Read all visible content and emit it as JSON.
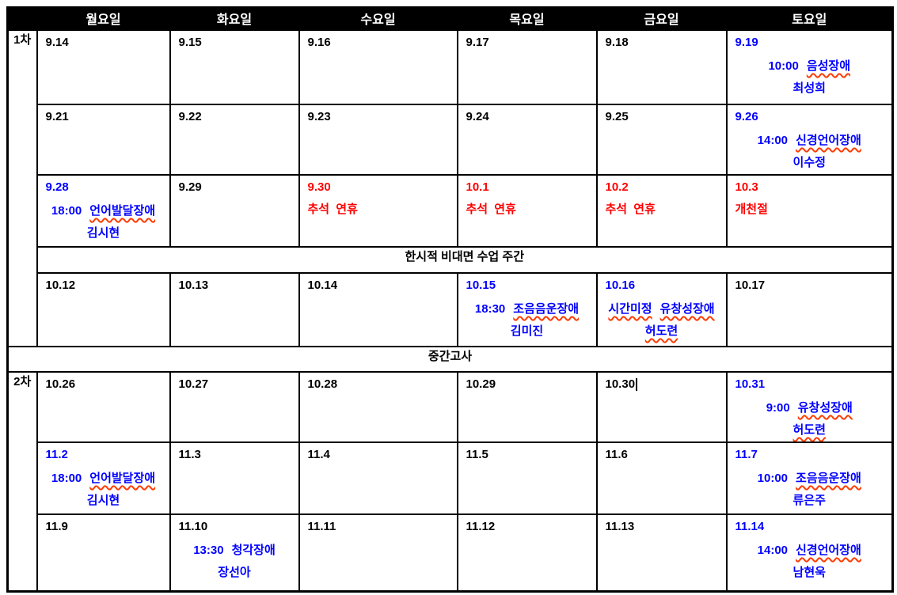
{
  "colors": {
    "event_text": "#0000ff",
    "holiday_text": "#ff0000",
    "normal_text": "#000000",
    "header_bg": "#000000",
    "header_text": "#ffffff",
    "spellcheck_underline": "#ff3b00"
  },
  "header": {
    "days": [
      "월요일",
      "화요일",
      "수요일",
      "목요일",
      "금요일",
      "토요일"
    ]
  },
  "rows": [
    {
      "type": "week",
      "label": {
        "text": "1차",
        "rowspan": 5
      },
      "days": [
        {
          "date": "9.14"
        },
        {
          "date": "9.15"
        },
        {
          "date": "9.16"
        },
        {
          "date": "9.17"
        },
        {
          "date": "9.18"
        },
        {
          "date": "9.19",
          "date_color": "#0000ff",
          "event": {
            "time": "10:00",
            "subject": "음성장애",
            "subject_wavy": true,
            "instructor": "최성희"
          }
        }
      ]
    },
    {
      "type": "week",
      "days": [
        {
          "date": "9.21"
        },
        {
          "date": "9.22"
        },
        {
          "date": "9.23"
        },
        {
          "date": "9.24"
        },
        {
          "date": "9.25"
        },
        {
          "date": "9.26",
          "date_color": "#0000ff",
          "event": {
            "time": "14:00",
            "subject": "신경언어장애",
            "subject_wavy": true,
            "instructor": "이수정"
          }
        }
      ]
    },
    {
      "type": "week",
      "days": [
        {
          "date": "9.28",
          "date_color": "#0000ff",
          "event": {
            "time": "18:00",
            "subject": "언어발달장애",
            "subject_wavy": true,
            "instructor": "김시현"
          }
        },
        {
          "date": "9.29"
        },
        {
          "date": "9.30",
          "date_color": "#ff0000",
          "holiday": "추석 연휴"
        },
        {
          "date": "10.1",
          "date_color": "#ff0000",
          "holiday": "추석 연휴"
        },
        {
          "date": "10.2",
          "date_color": "#ff0000",
          "holiday": "추석 연휴"
        },
        {
          "date": "10.3",
          "date_color": "#ff0000",
          "holiday": "개천절"
        }
      ]
    },
    {
      "type": "banner",
      "id": "remote-class-week",
      "colspan": 6,
      "text": "한시적 비대면 수업 주간"
    },
    {
      "type": "week",
      "days": [
        {
          "date": "10.12"
        },
        {
          "date": "10.13"
        },
        {
          "date": "10.14"
        },
        {
          "date": "10.15",
          "date_color": "#0000ff",
          "event": {
            "time": "18:30",
            "subject": "조음음운장애",
            "subject_wavy": true,
            "instructor": "김미진"
          }
        },
        {
          "date": "10.16",
          "date_color": "#0000ff",
          "event": {
            "time": "시간미정",
            "time_wavy": true,
            "subject": "유창성장애",
            "subject_wavy": true,
            "instructor": "허도련",
            "instructor_wavy": true
          }
        },
        {
          "date": "10.17"
        }
      ]
    },
    {
      "type": "banner",
      "id": "midterm-exam",
      "colspan": 7,
      "text": "중간고사"
    },
    {
      "type": "week",
      "label": {
        "text": "2차",
        "rowspan": 3
      },
      "days": [
        {
          "date": "10.26"
        },
        {
          "date": "10.27"
        },
        {
          "date": "10.28"
        },
        {
          "date": "10.29"
        },
        {
          "date": "10.30",
          "caret": true
        },
        {
          "date": "10.31",
          "date_color": "#0000ff",
          "event": {
            "time": "9:00",
            "subject": "유창성장애",
            "subject_wavy": true,
            "instructor": "허도련",
            "instructor_wavy": true
          }
        }
      ]
    },
    {
      "type": "week",
      "days": [
        {
          "date": "11.2",
          "date_color": "#0000ff",
          "event": {
            "time": "18:00",
            "subject": "언어발달장애",
            "subject_wavy": true,
            "instructor": "김시현"
          }
        },
        {
          "date": "11.3"
        },
        {
          "date": "11.4"
        },
        {
          "date": "11.5"
        },
        {
          "date": "11.6"
        },
        {
          "date": "11.7",
          "date_color": "#0000ff",
          "event": {
            "time": "10:00",
            "subject": "조음음운장애",
            "subject_wavy": true,
            "instructor": "류은주"
          }
        }
      ]
    },
    {
      "type": "week",
      "days": [
        {
          "date": "11.9"
        },
        {
          "date": "11.10",
          "event": {
            "time": "13:30",
            "subject": "청각장애",
            "instructor": "장선아"
          }
        },
        {
          "date": "11.11"
        },
        {
          "date": "11.12"
        },
        {
          "date": "11.13"
        },
        {
          "date": "11.14",
          "date_color": "#0000ff",
          "event": {
            "time": "14:00",
            "subject": "신경언어장애",
            "subject_wavy": true,
            "instructor": "남현욱"
          }
        }
      ]
    }
  ]
}
